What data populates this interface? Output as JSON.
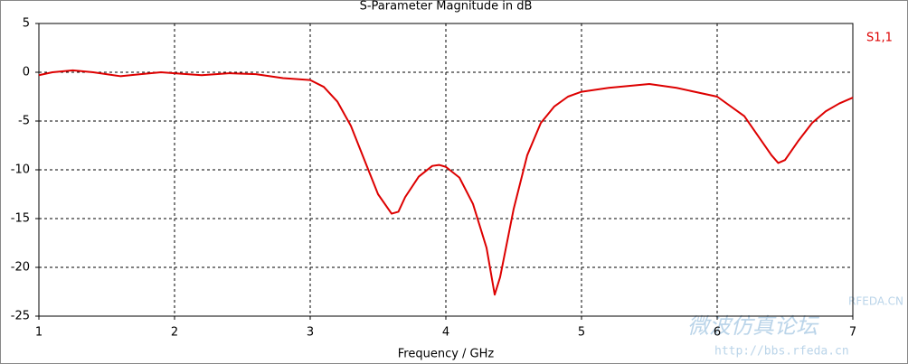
{
  "chart_data": {
    "type": "line",
    "title": "S-Parameter Magnitude in dB",
    "xlabel": "Frequency / GHz",
    "x": [
      1.0,
      1.1,
      1.25,
      1.4,
      1.6,
      1.75,
      1.9,
      2.0,
      2.2,
      2.4,
      2.6,
      2.8,
      3.0,
      3.1,
      3.2,
      3.3,
      3.4,
      3.5,
      3.6,
      3.65,
      3.7,
      3.8,
      3.9,
      3.95,
      4.0,
      4.1,
      4.2,
      4.3,
      4.36,
      4.4,
      4.5,
      4.6,
      4.7,
      4.8,
      4.9,
      5.0,
      5.2,
      5.5,
      5.7,
      6.0,
      6.2,
      6.3,
      6.4,
      6.45,
      6.5,
      6.6,
      6.7,
      6.8,
      6.9,
      7.0
    ],
    "series": [
      {
        "name": "S1,1",
        "color": "#dd0000",
        "values": [
          -0.3,
          0,
          0.2,
          0,
          -0.4,
          -0.2,
          0,
          -0.1,
          -0.3,
          -0.1,
          -0.2,
          -0.6,
          -0.8,
          -1.5,
          -3,
          -5.5,
          -9,
          -12.5,
          -14.5,
          -14.3,
          -12.8,
          -10.7,
          -9.6,
          -9.5,
          -9.7,
          -10.8,
          -13.5,
          -18,
          -22.8,
          -21,
          -14,
          -8.5,
          -5.2,
          -3.5,
          -2.5,
          -2,
          -1.6,
          -1.2,
          -1.6,
          -2.5,
          -4.5,
          -6.5,
          -8.5,
          -9.3,
          -9.0,
          -7,
          -5.2,
          -4,
          -3.2,
          -2.6
        ]
      }
    ],
    "xlim": [
      1,
      7
    ],
    "xticks": [
      1,
      2,
      3,
      4,
      5,
      6,
      7
    ],
    "ylim": [
      -25,
      5
    ],
    "yticks": [
      5,
      0,
      -5,
      -10,
      -15,
      -20,
      -25
    ],
    "grid": true,
    "watermark": [
      "RFEDA.CN",
      "微波仿真论坛",
      "http://bbs.rfeda.cn"
    ]
  }
}
